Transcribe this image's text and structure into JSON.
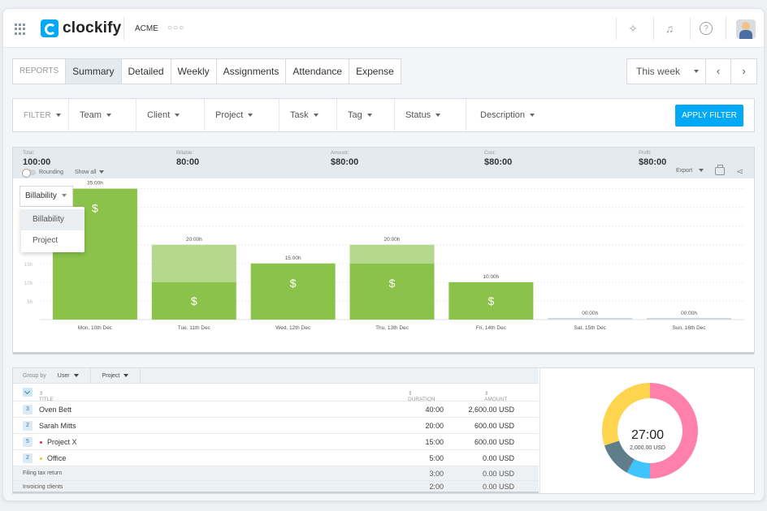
{
  "app": {
    "logo_text": "clockify",
    "workspace": "ACME"
  },
  "tabs": [
    {
      "label": "REPORTS"
    },
    {
      "label": "Summary"
    },
    {
      "label": "Detailed"
    },
    {
      "label": "Weekly"
    },
    {
      "label": "Assignments"
    },
    {
      "label": "Attendance"
    },
    {
      "label": "Expense"
    }
  ],
  "date_range": {
    "label": "This week",
    "prev": "‹",
    "next": "›"
  },
  "filters": {
    "items": [
      {
        "label": "FILTER"
      },
      {
        "label": "Team"
      },
      {
        "label": "Client"
      },
      {
        "label": "Project"
      },
      {
        "label": "Task"
      },
      {
        "label": "Tag"
      },
      {
        "label": "Status"
      },
      {
        "label": "Description"
      }
    ],
    "apply_label": "APPLY FILTER"
  },
  "totals": {
    "total": {
      "label": "Total:",
      "value": "100:00"
    },
    "billable": {
      "label": "Billable:",
      "value": "80:00"
    },
    "amount": {
      "label": "Amount:",
      "value": "$80:00"
    },
    "cost": {
      "label": "Cost:",
      "value": "$80:00"
    },
    "profit": {
      "label": "Profit:",
      "value": "$80:00"
    },
    "rounding_label": "Rounding",
    "show_all_label": "Show all",
    "export_label": "Export"
  },
  "chart_dropdown": {
    "selected": "Billability",
    "options": [
      "Billability",
      "Project"
    ]
  },
  "chart_data": {
    "type": "bar",
    "categories": [
      "Mon, 10th Dec",
      "Tue, 11th Dec",
      "Wed, 12th Dec",
      "Thu, 13th Dec",
      "Fri, 14th Dec",
      "Sat, 15th Dec",
      "Sun, 16th Dec"
    ],
    "value_labels": [
      "35:00h",
      "20:00h",
      "15:00h",
      "20:00h",
      "10:00h",
      "00:00h",
      "00:00h"
    ],
    "series": [
      {
        "values": [
          35,
          10,
          15,
          15,
          10,
          0,
          0
        ]
      },
      {
        "values": [
          0,
          10,
          0,
          5,
          0,
          0,
          0
        ]
      }
    ],
    "y_ticks": [
      "5h",
      "10h",
      "15h",
      "20h"
    ],
    "billable_icon": "dollar-icon",
    "ylim": [
      0,
      36
    ],
    "grid": true,
    "colors": {
      "billable": "#8bc34a",
      "non_billable": "#b5d98c",
      "empty": "#cfd8de"
    }
  },
  "group_by": {
    "label": "Group by",
    "first": "User",
    "second": "Project"
  },
  "table": {
    "headers": {
      "title": "TITLE",
      "duration": "DURATION",
      "amount": "AMOUNT"
    },
    "rows": [
      {
        "num": "3",
        "title": "Oven Bett",
        "duration": "40:00",
        "amount": "2,600.00 USD",
        "type": "user"
      },
      {
        "num": "2",
        "title": "Sarah Mitts",
        "duration": "20:00",
        "amount": "600.00 USD",
        "type": "user"
      },
      {
        "num": "5",
        "title": "Project X",
        "duration": "15:00",
        "amount": "600.00 USD",
        "type": "project",
        "color": "#e91e63"
      },
      {
        "num": "2",
        "title": "Office",
        "duration": "5:00",
        "amount": "0.00 USD",
        "type": "project",
        "color": "#ffc107"
      },
      {
        "title": "Filing tax return",
        "duration": "3:00",
        "amount": "0.00 USD",
        "type": "task"
      },
      {
        "title": "Invoicing clients",
        "duration": "2:00",
        "amount": "0.00 USD",
        "type": "task"
      }
    ]
  },
  "donut": {
    "total": "27:00",
    "amount": "2,000.00 USD",
    "slices": [
      {
        "value": 50,
        "color": "#ff80ab"
      },
      {
        "value": 8,
        "color": "#40c4ff"
      },
      {
        "value": 12,
        "color": "#607d8b"
      },
      {
        "value": 30,
        "color": "#ffd54f"
      }
    ]
  }
}
